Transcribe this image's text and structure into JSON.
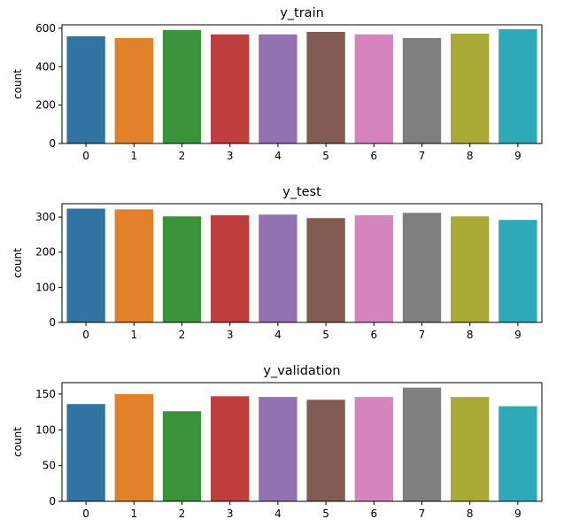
{
  "chart_data": [
    {
      "type": "bar",
      "title": "y_train",
      "xlabel": "",
      "ylabel": "count",
      "categories": [
        "0",
        "1",
        "2",
        "3",
        "4",
        "5",
        "6",
        "7",
        "8",
        "9"
      ],
      "values": [
        558,
        549,
        591,
        568,
        568,
        581,
        568,
        549,
        572,
        595
      ],
      "ylim": [
        0,
        618
      ],
      "yticks": [
        0,
        200,
        400,
        600
      ],
      "colors": [
        "#3274a1",
        "#e1812c",
        "#3a923a",
        "#c03d3e",
        "#9372b2",
        "#845b53",
        "#d684bd",
        "#7f7f7f",
        "#a9aa35",
        "#2ea9b8"
      ]
    },
    {
      "type": "bar",
      "title": "y_test",
      "xlabel": "",
      "ylabel": "count",
      "categories": [
        "0",
        "1",
        "2",
        "3",
        "4",
        "5",
        "6",
        "7",
        "8",
        "9"
      ],
      "values": [
        324,
        322,
        302,
        305,
        307,
        297,
        305,
        312,
        302,
        292
      ],
      "ylim": [
        0,
        338
      ],
      "yticks": [
        0,
        100,
        200,
        300
      ],
      "colors": [
        "#3274a1",
        "#e1812c",
        "#3a923a",
        "#c03d3e",
        "#9372b2",
        "#845b53",
        "#d684bd",
        "#7f7f7f",
        "#a9aa35",
        "#2ea9b8"
      ]
    },
    {
      "type": "bar",
      "title": "y_validation",
      "xlabel": "",
      "ylabel": "count",
      "categories": [
        "0",
        "1",
        "2",
        "3",
        "4",
        "5",
        "6",
        "7",
        "8",
        "9"
      ],
      "values": [
        136,
        150,
        126,
        147,
        146,
        142,
        146,
        159,
        146,
        133
      ],
      "ylim": [
        0,
        166
      ],
      "yticks": [
        0,
        50,
        100,
        150
      ],
      "colors": [
        "#3274a1",
        "#e1812c",
        "#3a923a",
        "#c03d3e",
        "#9372b2",
        "#845b53",
        "#d684bd",
        "#7f7f7f",
        "#a9aa35",
        "#2ea9b8"
      ]
    }
  ]
}
